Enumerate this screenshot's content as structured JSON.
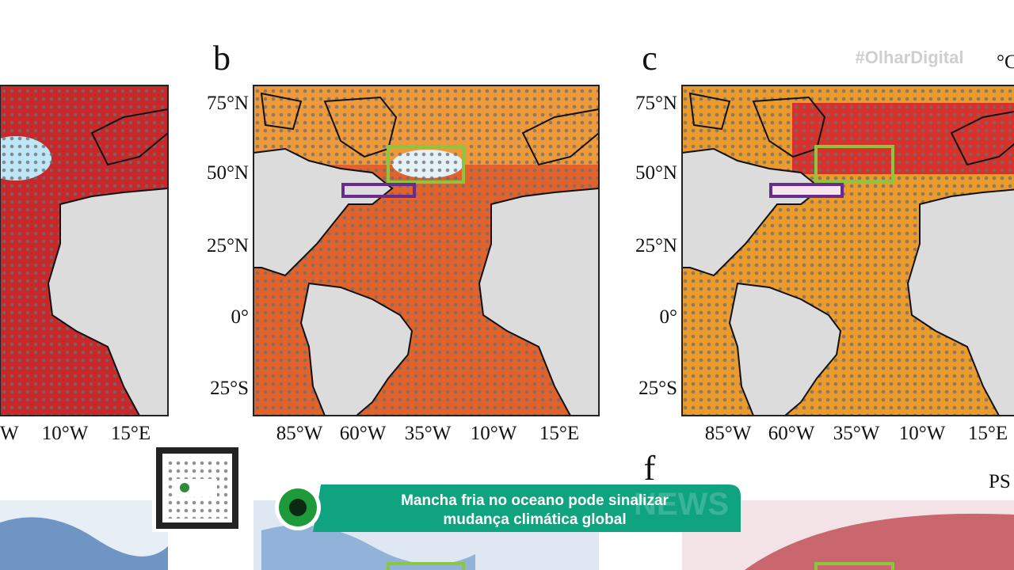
{
  "watermark": "#OlharDigital",
  "unit_label": "°C",
  "corner_label": "PS",
  "left_panel": {
    "lon_labels": [
      "°W",
      "10°W",
      "15°E"
    ]
  },
  "panel_b": {
    "label": "b",
    "lat_labels": [
      "75°N",
      "50°N",
      "25°N",
      "0°",
      "25°S"
    ],
    "lon_labels": [
      "85°W",
      "60°W",
      "35°W",
      "10°W",
      "15°E"
    ]
  },
  "panel_c": {
    "label": "c",
    "lat_labels": [
      "75°N",
      "50°N",
      "25°N",
      "0°",
      "25°S"
    ],
    "lon_labels": [
      "85°W",
      "60°W",
      "35°W",
      "10°W",
      "15°E"
    ]
  },
  "panel_f": {
    "label": "f"
  },
  "banner": {
    "lines": [
      "Mancha fria no oceano pode sinalizar",
      "mudança climática global"
    ],
    "background_word": "NEWS"
  }
}
